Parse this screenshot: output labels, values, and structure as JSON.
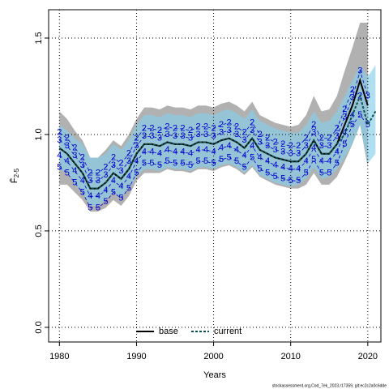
{
  "chart_data": {
    "type": "line",
    "xlabel": "Years",
    "ylabel_symbol": "F̄",
    "ylabel_subscript": "2-5",
    "footnote": "stockassessment.org,Cod_7ek_2023,r17359, git:ec2c2a0c6dde",
    "x": [
      1980,
      1981,
      1982,
      1983,
      1984,
      1985,
      1986,
      1987,
      1988,
      1989,
      1990,
      1991,
      1992,
      1993,
      1994,
      1995,
      1996,
      1997,
      1998,
      1999,
      2000,
      2001,
      2002,
      2003,
      2004,
      2005,
      2006,
      2007,
      2008,
      2009,
      2010,
      2011,
      2012,
      2013,
      2014,
      2015,
      2016,
      2017,
      2018,
      2019,
      2020,
      2021
    ],
    "xlim": [
      1978.6,
      2021.7
    ],
    "ylim": [
      -0.076,
      1.647
    ],
    "xticks": [
      1980,
      1990,
      2000,
      2010,
      2020
    ],
    "yticks": [
      {
        "value": 0,
        "label": "0.0"
      },
      {
        "value": 0.5,
        "label": "0.5"
      },
      {
        "value": 1,
        "label": "1.0"
      },
      {
        "value": 1.5,
        "label": "1.5"
      }
    ],
    "grid": true,
    "legend_position": "bottom",
    "bands": [
      {
        "color": "#a3a3a3",
        "upper": [
          1.12,
          1.08,
          1.02,
          0.97,
          0.88,
          0.88,
          0.92,
          0.97,
          0.94,
          1.0,
          1.08,
          1.14,
          1.14,
          1.13,
          1.15,
          1.14,
          1.14,
          1.13,
          1.15,
          1.15,
          1.14,
          1.16,
          1.17,
          1.15,
          1.12,
          1.17,
          1.1,
          1.08,
          1.06,
          1.05,
          1.04,
          1.05,
          1.1,
          1.2,
          1.12,
          1.13,
          1.2,
          1.33,
          1.45,
          1.58,
          1.58,
          null
        ],
        "lower": [
          0.74,
          0.74,
          0.7,
          0.66,
          0.6,
          0.6,
          0.62,
          0.66,
          0.63,
          0.68,
          0.76,
          0.8,
          0.8,
          0.8,
          0.82,
          0.81,
          0.81,
          0.8,
          0.82,
          0.82,
          0.81,
          0.83,
          0.84,
          0.82,
          0.79,
          0.83,
          0.78,
          0.76,
          0.74,
          0.73,
          0.72,
          0.72,
          0.74,
          0.8,
          0.74,
          0.74,
          0.78,
          0.86,
          0.95,
          1.05,
          0.83,
          null
        ]
      },
      {
        "color": "#87ceeb",
        "upper": [
          1.05,
          1.02,
          0.98,
          0.95,
          0.88,
          0.88,
          0.9,
          0.95,
          0.92,
          0.97,
          1.05,
          1.1,
          1.1,
          1.09,
          1.11,
          1.1,
          1.1,
          1.09,
          1.11,
          1.11,
          1.1,
          1.12,
          1.13,
          1.11,
          1.08,
          1.13,
          1.07,
          1.05,
          1.03,
          1.02,
          1.01,
          1.01,
          1.05,
          1.12,
          1.06,
          1.07,
          1.12,
          1.2,
          1.28,
          1.36,
          1.3,
          1.36
        ],
        "lower": [
          0.82,
          0.8,
          0.74,
          0.7,
          0.63,
          0.63,
          0.66,
          0.7,
          0.67,
          0.72,
          0.78,
          0.82,
          0.82,
          0.81,
          0.83,
          0.82,
          0.82,
          0.81,
          0.83,
          0.83,
          0.82,
          0.84,
          0.85,
          0.83,
          0.8,
          0.84,
          0.79,
          0.77,
          0.75,
          0.74,
          0.73,
          0.74,
          0.77,
          0.83,
          0.77,
          0.78,
          0.82,
          0.88,
          0.95,
          1.05,
          0.85,
          0.9
        ]
      }
    ],
    "retro": [
      {
        "name": "2",
        "color": "#0000cd",
        "values": [
          1.01,
          0.98,
          0.93,
          0.88,
          0.8,
          0.8,
          0.83,
          0.88,
          0.85,
          0.9,
          0.98,
          1.03,
          1.03,
          1.02,
          1.04,
          1.03,
          1.03,
          1.02,
          1.04,
          1.04,
          1.03,
          1.05,
          1.06,
          1.04,
          1.01,
          1.06,
          1.0,
          0.98,
          0.96,
          0.95,
          0.94,
          0.94,
          0.98,
          1.05,
          0.98,
          0.98,
          1.03,
          1.13,
          1.23,
          1.2,
          null,
          null
        ]
      },
      {
        "name": "3",
        "color": "#0000cd",
        "values": [
          0.97,
          0.94,
          0.89,
          0.84,
          0.76,
          0.76,
          0.79,
          0.84,
          0.81,
          0.86,
          0.94,
          0.99,
          0.99,
          0.98,
          1.0,
          0.99,
          0.99,
          0.98,
          1.0,
          1.0,
          0.99,
          1.01,
          1.02,
          1.0,
          0.97,
          1.02,
          0.96,
          0.94,
          0.92,
          0.91,
          0.9,
          0.9,
          0.94,
          1.01,
          0.94,
          0.94,
          0.99,
          1.09,
          1.19,
          1.33,
          1.2,
          null
        ]
      },
      {
        "name": "4",
        "color": "#0000cd",
        "values": [
          0.89,
          0.86,
          0.81,
          0.76,
          0.68,
          0.68,
          0.71,
          0.76,
          0.73,
          0.78,
          0.86,
          0.91,
          0.91,
          0.9,
          0.92,
          0.91,
          0.91,
          0.9,
          0.92,
          0.92,
          0.91,
          0.93,
          0.94,
          0.92,
          0.89,
          0.94,
          0.88,
          0.86,
          0.84,
          0.83,
          0.82,
          0.82,
          0.86,
          0.93,
          0.86,
          0.86,
          0.91,
          1.01,
          1.1,
          null,
          null,
          null
        ]
      },
      {
        "name": "5",
        "color": "#0000cd",
        "values": [
          0.83,
          0.8,
          0.75,
          0.7,
          0.62,
          0.62,
          0.65,
          0.7,
          0.67,
          0.72,
          0.8,
          0.85,
          0.85,
          0.84,
          0.86,
          0.85,
          0.85,
          0.84,
          0.86,
          0.86,
          0.85,
          0.87,
          0.88,
          0.86,
          0.83,
          0.88,
          0.82,
          0.8,
          0.78,
          0.77,
          0.76,
          0.76,
          0.8,
          0.87,
          0.8,
          0.8,
          0.85,
          0.95,
          1.05,
          1.1,
          1.05,
          null
        ]
      }
    ],
    "series": [
      {
        "name": "base",
        "color": "#000000",
        "dash": false,
        "values": [
          0.93,
          0.9,
          0.85,
          0.8,
          0.72,
          0.72,
          0.75,
          0.8,
          0.77,
          0.82,
          0.9,
          0.95,
          0.95,
          0.94,
          0.96,
          0.95,
          0.95,
          0.94,
          0.96,
          0.96,
          0.95,
          0.97,
          0.98,
          0.96,
          0.93,
          0.98,
          0.92,
          0.9,
          0.88,
          0.87,
          0.86,
          0.86,
          0.9,
          0.97,
          0.9,
          0.9,
          0.95,
          1.05,
          1.15,
          1.28,
          1.15,
          null
        ]
      },
      {
        "name": "current",
        "color": "#0a4f4f",
        "dash": true,
        "values": [
          0.93,
          0.9,
          0.85,
          0.8,
          0.72,
          0.72,
          0.75,
          0.8,
          0.77,
          0.82,
          0.9,
          0.95,
          0.95,
          0.94,
          0.96,
          0.95,
          0.95,
          0.94,
          0.96,
          0.96,
          0.95,
          0.97,
          0.98,
          0.96,
          0.93,
          0.98,
          0.92,
          0.9,
          0.88,
          0.87,
          0.86,
          0.86,
          0.9,
          0.97,
          0.9,
          0.9,
          0.95,
          1.0,
          1.1,
          1.2,
          1.05,
          1.12
        ]
      }
    ]
  }
}
